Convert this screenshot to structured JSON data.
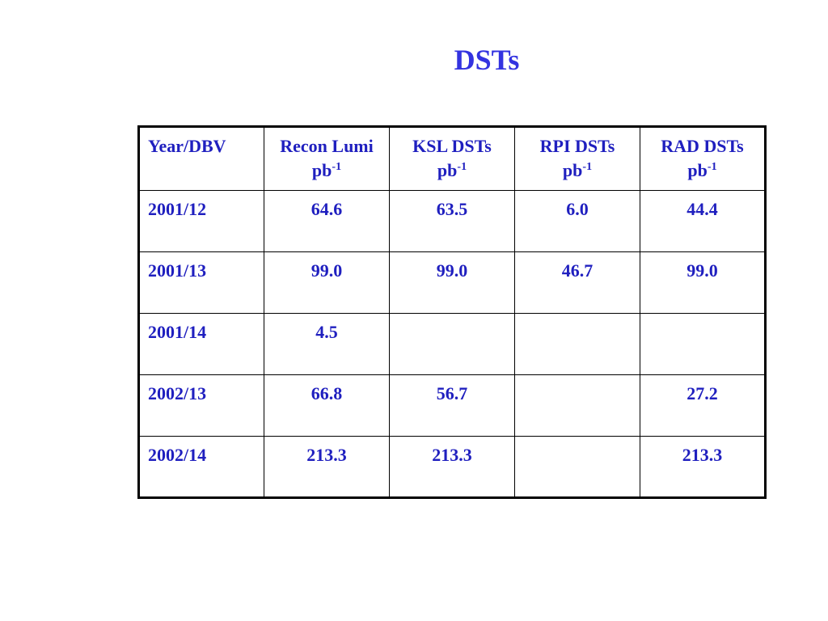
{
  "slide": {
    "title": "DSTs"
  },
  "table": {
    "headers": [
      {
        "label": "Year/DBV",
        "unit_base": "",
        "unit_exp": ""
      },
      {
        "label": "Recon Lumi",
        "unit_base": "pb",
        "unit_exp": "-1"
      },
      {
        "label": "KSL DSTs",
        "unit_base": "pb",
        "unit_exp": "-1"
      },
      {
        "label": "RPI DSTs",
        "unit_base": "pb",
        "unit_exp": "-1"
      },
      {
        "label": "RAD DSTs",
        "unit_base": "pb",
        "unit_exp": "-1"
      }
    ],
    "rows": [
      [
        "2001/12",
        "64.6",
        "63.5",
        "6.0",
        "44.4"
      ],
      [
        "2001/13",
        "99.0",
        "99.0",
        "46.7",
        "99.0"
      ],
      [
        "2001/14",
        "4.5",
        "",
        "",
        ""
      ],
      [
        "2002/13",
        "66.8",
        "56.7",
        "",
        "27.2"
      ],
      [
        "2002/14",
        "213.3",
        "213.3",
        "",
        "213.3"
      ]
    ]
  },
  "colors": {
    "text": "#1f1fbf",
    "title": "#3333e0",
    "border": "#000000",
    "background": "#ffffff"
  }
}
